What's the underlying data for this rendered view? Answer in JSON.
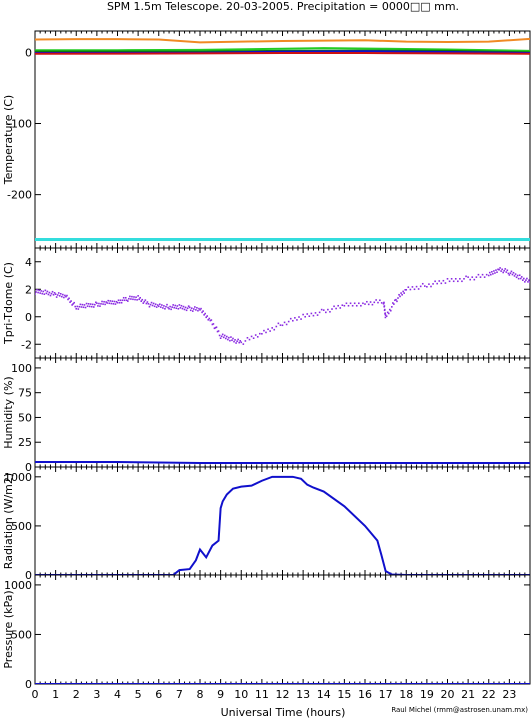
{
  "title": "SPM 1.5m Telescope. 20-03-2005. Precipitation = 0000□□ mm.",
  "credit": "Raul Michel (rmm@astrosen.unam.mx)",
  "colors": {
    "axis": "#000000",
    "orange": "#f08a24",
    "green": "#22cc22",
    "darkgreen": "#0a7a0a",
    "blue": "#1010cc",
    "red": "#cc1010",
    "cyan": "#33dddd",
    "purple": "#8a2be2"
  },
  "chart_data": [
    {
      "type": "line",
      "name": "temperature",
      "ylabel": "Temperature (C)",
      "xlim": [
        0,
        24
      ],
      "ylim": [
        -275,
        30
      ],
      "yticks": [
        0,
        -100,
        -200
      ],
      "series": [
        {
          "color": "orange",
          "x": [
            0,
            2,
            4,
            6,
            8,
            10,
            12,
            14,
            16,
            18,
            20,
            22,
            24
          ],
          "y": [
            18,
            18.5,
            18.5,
            18,
            14,
            15,
            16,
            16.5,
            17,
            15,
            14.5,
            15,
            19
          ]
        },
        {
          "color": "green",
          "x": [
            0,
            4,
            8,
            12,
            14,
            17,
            20,
            24
          ],
          "y": [
            3,
            3,
            3.5,
            5,
            6,
            5,
            4,
            2
          ]
        },
        {
          "color": "darkgreen",
          "x": [
            0,
            8,
            12,
            16,
            20,
            24
          ],
          "y": [
            1,
            1,
            2,
            2.5,
            2,
            0
          ]
        },
        {
          "color": "blue",
          "x": [
            0,
            8,
            12,
            16,
            20,
            24
          ],
          "y": [
            -1,
            -0.5,
            1,
            1.5,
            0.5,
            -1
          ]
        },
        {
          "color": "red",
          "x": [
            0,
            8,
            12,
            16,
            20,
            24
          ],
          "y": [
            -2,
            -1.5,
            -1,
            -1,
            -1.5,
            -2
          ]
        },
        {
          "color": "cyan",
          "x": [
            0,
            24
          ],
          "y": [
            -263,
            -263
          ]
        }
      ]
    },
    {
      "type": "scatter",
      "name": "tdiff",
      "ylabel": "Tpri-Tdome (C)",
      "xlim": [
        0,
        24
      ],
      "ylim": [
        -3,
        5
      ],
      "yticks": [
        4,
        2,
        0,
        -2
      ],
      "color": "purple",
      "x": [
        0,
        0.5,
        1,
        1.5,
        2,
        2.5,
        3,
        3.5,
        4,
        4.5,
        5,
        5.5,
        6,
        6.5,
        7,
        7.5,
        8,
        8.5,
        9,
        9.5,
        10,
        11,
        12,
        13,
        14,
        15,
        16,
        16.9,
        17,
        17.5,
        18,
        19,
        20,
        21,
        22,
        22.5,
        23,
        23.5,
        24
      ],
      "y": [
        1.8,
        1.8,
        1.6,
        1.5,
        0.7,
        0.8,
        0.9,
        1.0,
        1.1,
        1.3,
        1.4,
        0.9,
        0.8,
        0.7,
        0.7,
        0.6,
        0.5,
        -0.2,
        -1.4,
        -1.6,
        -1.9,
        -1.2,
        -0.5,
        0.0,
        0.4,
        0.8,
        1.0,
        1.1,
        0.0,
        1.2,
        2.0,
        2.3,
        2.6,
        2.8,
        3.0,
        3.5,
        3.2,
        2.9,
        2.5
      ]
    },
    {
      "type": "line",
      "name": "humidity",
      "ylabel": "Humidity (%)",
      "xlim": [
        0,
        24
      ],
      "ylim": [
        0,
        110
      ],
      "yticks": [
        100,
        75,
        50,
        25,
        0
      ],
      "color": "blue",
      "x": [
        0,
        4,
        8,
        12,
        16,
        20,
        24
      ],
      "y": [
        5,
        5,
        4,
        4,
        4,
        4,
        4
      ]
    },
    {
      "type": "line",
      "name": "radiation",
      "ylabel": "Radiation (W/m2)",
      "xlim": [
        0,
        24
      ],
      "ylim": [
        0,
        1100
      ],
      "yticks": [
        1000,
        500,
        0
      ],
      "color": "blue",
      "x": [
        0,
        6.7,
        7,
        7.5,
        7.8,
        8,
        8.3,
        8.6,
        8.9,
        9,
        9.1,
        9.3,
        9.6,
        10,
        10.5,
        11,
        11.5,
        12,
        12.5,
        12.9,
        13.2,
        13.5,
        14,
        15,
        16,
        16.6,
        16.8,
        17,
        17.3,
        18,
        24
      ],
      "y": [
        0,
        0,
        50,
        60,
        150,
        260,
        180,
        300,
        350,
        680,
        750,
        820,
        880,
        900,
        910,
        960,
        1000,
        1000,
        1000,
        980,
        920,
        890,
        850,
        700,
        500,
        350,
        200,
        40,
        5,
        0,
        0
      ]
    },
    {
      "type": "line",
      "name": "pressure",
      "ylabel": "Pressure (kPa)",
      "xlabel": "Universal Time (hours)",
      "xlim": [
        0,
        24
      ],
      "ylim": [
        0,
        1100
      ],
      "yticks": [
        1000,
        500,
        0
      ],
      "color": "blue",
      "x": [
        0,
        24
      ],
      "y": [
        0,
        0
      ]
    }
  ],
  "xticks": [
    "0",
    "1",
    "2",
    "3",
    "4",
    "5",
    "6",
    "7",
    "8",
    "9",
    "10",
    "11",
    "12",
    "13",
    "14",
    "15",
    "16",
    "17",
    "18",
    "19",
    "20",
    "21",
    "22",
    "23"
  ]
}
